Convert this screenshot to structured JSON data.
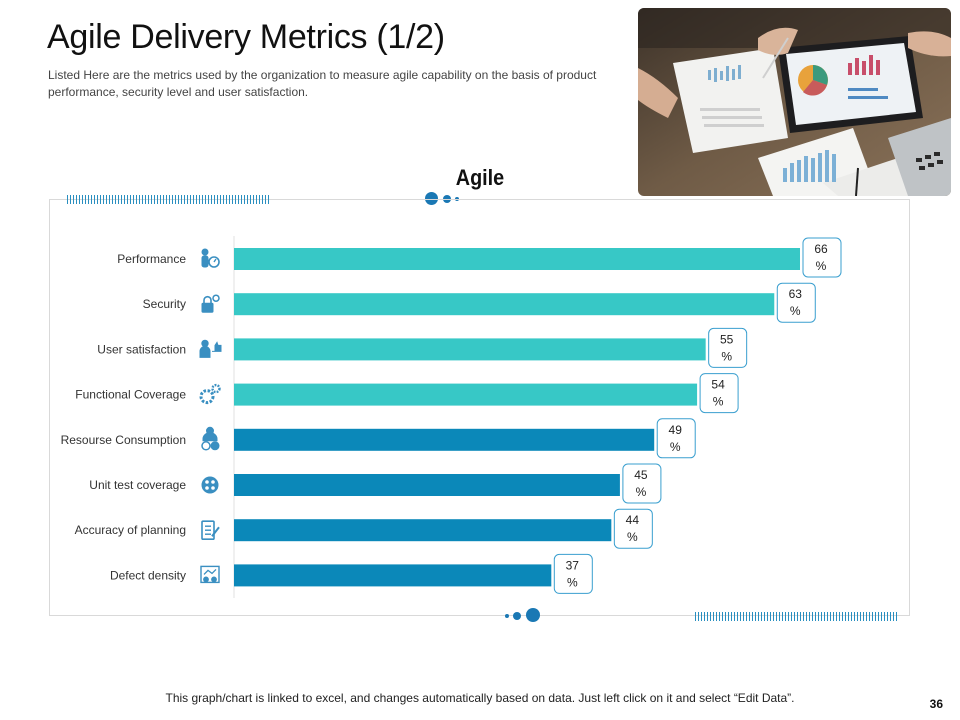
{
  "header": {
    "title": "Agile Delivery Metrics (1/2)",
    "subtitle": "Listed Here are the metrics used by the organization to measure agile capability on the basis of product performance, security level and user satisfaction."
  },
  "footer": {
    "note": "This graph/chart is linked to excel, and changes automatically based on data. Just left click on it and select “Edit Data”.",
    "page_number": "36"
  },
  "colors": {
    "teal": "#37c8c6",
    "blue": "#0b88b9",
    "accent": "#1a78b4"
  },
  "chart_data": {
    "type": "bar",
    "orientation": "horizontal",
    "title": "Agile",
    "categories": [
      "Performance",
      "Security",
      "User satisfaction",
      "Functional Coverage",
      "Resourse Consumption",
      "Unit test coverage",
      "Accuracy of planning",
      "Defect density"
    ],
    "icons": [
      "performance-icon",
      "security-icon",
      "user-satisfaction-icon",
      "functional-coverage-icon",
      "resource-consumption-icon",
      "unit-test-icon",
      "planning-icon",
      "defect-density-icon"
    ],
    "values": [
      66,
      63,
      55,
      54,
      49,
      45,
      44,
      37
    ],
    "bar_colors": [
      "#37c8c6",
      "#37c8c6",
      "#37c8c6",
      "#37c8c6",
      "#0b88b9",
      "#0b88b9",
      "#0b88b9",
      "#0b88b9"
    ],
    "value_suffix": "%",
    "xlim": [
      0,
      70
    ]
  }
}
